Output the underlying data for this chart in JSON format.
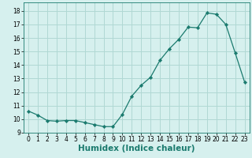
{
  "xlabel": "Humidex (Indice chaleur)",
  "ylabel": "",
  "x": [
    0,
    1,
    2,
    3,
    4,
    5,
    6,
    7,
    8,
    9,
    10,
    11,
    12,
    13,
    14,
    15,
    16,
    17,
    18,
    19,
    20,
    21,
    22,
    23
  ],
  "y": [
    10.6,
    10.3,
    9.9,
    9.85,
    9.9,
    9.9,
    9.75,
    9.6,
    9.45,
    9.45,
    10.35,
    11.7,
    12.5,
    13.1,
    14.35,
    15.2,
    15.9,
    16.8,
    16.75,
    17.85,
    17.75,
    17.0,
    14.9,
    12.75
  ],
  "line_color": "#1a7a6e",
  "marker": "D",
  "marker_size": 2.2,
  "bg_color": "#d6f0ee",
  "grid_color": "#b0d8d4",
  "ylim": [
    9.0,
    18.6
  ],
  "yticks": [
    9,
    10,
    11,
    12,
    13,
    14,
    15,
    16,
    17,
    18
  ],
  "xlim": [
    -0.5,
    23.5
  ],
  "xticks": [
    0,
    1,
    2,
    3,
    4,
    5,
    6,
    7,
    8,
    9,
    10,
    11,
    12,
    13,
    14,
    15,
    16,
    17,
    18,
    19,
    20,
    21,
    22,
    23
  ],
  "tick_fontsize": 5.5,
  "xlabel_fontsize": 7.5,
  "linewidth": 0.9
}
